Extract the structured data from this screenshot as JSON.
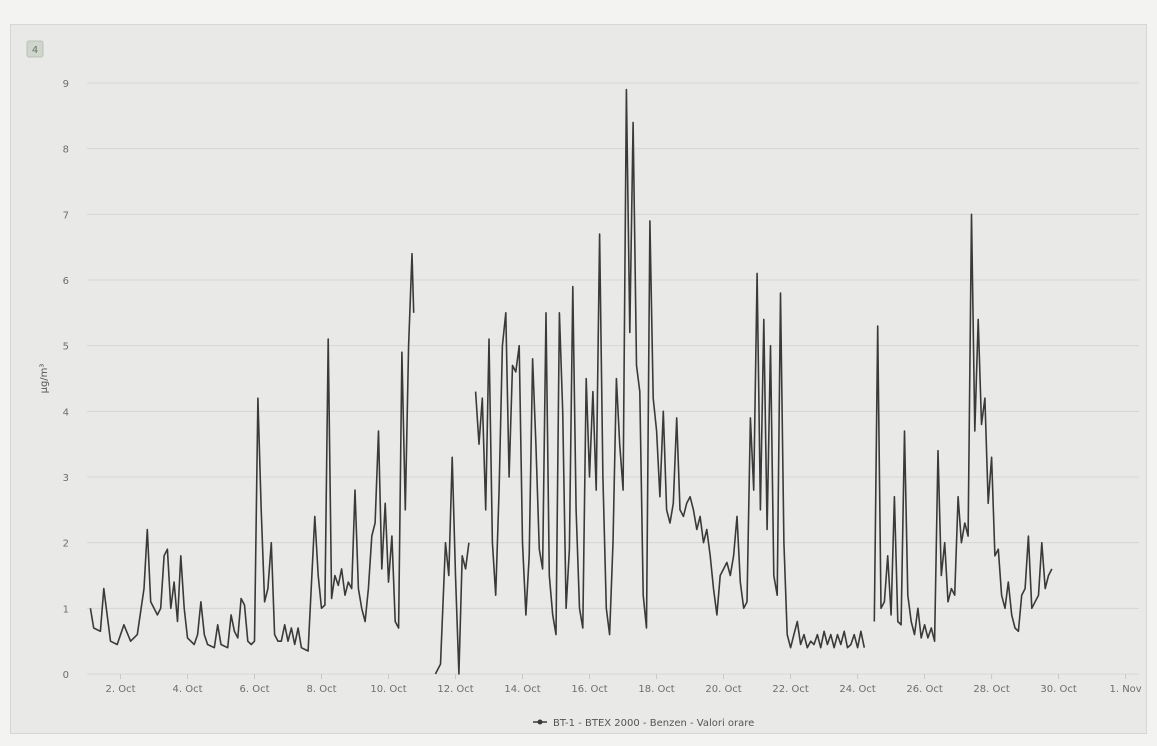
{
  "panel_badge": "4",
  "chart_data": {
    "type": "line",
    "ylabel": "µg/m³",
    "ylim": [
      0,
      9
    ],
    "yticks": [
      0,
      1,
      2,
      3,
      4,
      5,
      6,
      7,
      8,
      9
    ],
    "xlim_day": [
      1.0,
      32.4
    ],
    "xticks": [
      {
        "day": 2,
        "label": "2. Oct"
      },
      {
        "day": 4,
        "label": "4. Oct"
      },
      {
        "day": 6,
        "label": "6. Oct"
      },
      {
        "day": 8,
        "label": "8. Oct"
      },
      {
        "day": 10,
        "label": "10. Oct"
      },
      {
        "day": 12,
        "label": "12. Oct"
      },
      {
        "day": 14,
        "label": "14. Oct"
      },
      {
        "day": 16,
        "label": "16. Oct"
      },
      {
        "day": 18,
        "label": "18. Oct"
      },
      {
        "day": 20,
        "label": "20. Oct"
      },
      {
        "day": 22,
        "label": "22. Oct"
      },
      {
        "day": 24,
        "label": "24. Oct"
      },
      {
        "day": 26,
        "label": "26. Oct"
      },
      {
        "day": 28,
        "label": "28. Oct"
      },
      {
        "day": 30,
        "label": "30. Oct"
      },
      {
        "day": 32,
        "label": "1. Nov"
      }
    ],
    "grid": true,
    "legend_position": "bottom-center",
    "series": [
      {
        "name": "BT-1 - BTEX 2000 - Benzen - Valori orare",
        "color": "#3a3a3a",
        "segments": [
          [
            [
              1.1,
              1.0
            ],
            [
              1.2,
              0.7
            ],
            [
              1.4,
              0.65
            ],
            [
              1.5,
              1.3
            ],
            [
              1.7,
              0.5
            ],
            [
              1.9,
              0.45
            ],
            [
              2.1,
              0.75
            ],
            [
              2.3,
              0.5
            ],
            [
              2.5,
              0.6
            ],
            [
              2.7,
              1.3
            ],
            [
              2.8,
              2.2
            ],
            [
              2.9,
              1.1
            ],
            [
              3.1,
              0.9
            ],
            [
              3.2,
              1.0
            ],
            [
              3.3,
              1.8
            ],
            [
              3.4,
              1.9
            ],
            [
              3.5,
              1.0
            ],
            [
              3.6,
              1.4
            ],
            [
              3.7,
              0.8
            ],
            [
              3.8,
              1.8
            ],
            [
              3.9,
              1.0
            ],
            [
              4.0,
              0.55
            ],
            [
              4.2,
              0.45
            ],
            [
              4.3,
              0.6
            ],
            [
              4.4,
              1.1
            ],
            [
              4.5,
              0.6
            ],
            [
              4.6,
              0.45
            ],
            [
              4.8,
              0.4
            ],
            [
              4.9,
              0.75
            ],
            [
              5.0,
              0.45
            ],
            [
              5.2,
              0.4
            ],
            [
              5.3,
              0.9
            ],
            [
              5.4,
              0.65
            ],
            [
              5.5,
              0.55
            ],
            [
              5.6,
              1.15
            ],
            [
              5.7,
              1.05
            ],
            [
              5.8,
              0.5
            ],
            [
              5.9,
              0.45
            ],
            [
              6.0,
              0.5
            ],
            [
              6.1,
              4.2
            ],
            [
              6.2,
              2.5
            ],
            [
              6.3,
              1.1
            ],
            [
              6.4,
              1.3
            ],
            [
              6.5,
              2.0
            ],
            [
              6.6,
              0.6
            ],
            [
              6.7,
              0.5
            ],
            [
              6.8,
              0.5
            ],
            [
              6.9,
              0.75
            ],
            [
              7.0,
              0.5
            ],
            [
              7.1,
              0.7
            ],
            [
              7.2,
              0.45
            ],
            [
              7.3,
              0.7
            ],
            [
              7.4,
              0.4
            ],
            [
              7.6,
              0.35
            ],
            [
              7.8,
              2.4
            ],
            [
              7.9,
              1.5
            ],
            [
              8.0,
              1.0
            ],
            [
              8.1,
              1.05
            ],
            [
              8.2,
              5.1
            ],
            [
              8.3,
              1.15
            ],
            [
              8.4,
              1.5
            ],
            [
              8.5,
              1.35
            ],
            [
              8.6,
              1.6
            ],
            [
              8.7,
              1.2
            ],
            [
              8.8,
              1.4
            ],
            [
              8.9,
              1.3
            ],
            [
              9.0,
              2.8
            ],
            [
              9.1,
              1.3
            ],
            [
              9.2,
              1.0
            ],
            [
              9.3,
              0.8
            ],
            [
              9.4,
              1.3
            ],
            [
              9.5,
              2.1
            ],
            [
              9.6,
              2.3
            ],
            [
              9.7,
              3.7
            ],
            [
              9.8,
              1.6
            ],
            [
              9.9,
              2.6
            ],
            [
              10.0,
              1.4
            ],
            [
              10.1,
              2.1
            ],
            [
              10.2,
              0.8
            ],
            [
              10.3,
              0.7
            ],
            [
              10.4,
              4.9
            ],
            [
              10.5,
              2.5
            ],
            [
              10.6,
              5.0
            ],
            [
              10.7,
              6.4
            ],
            [
              10.75,
              5.5
            ]
          ],
          [
            [
              11.4,
              0.0
            ],
            [
              11.55,
              0.15
            ],
            [
              11.7,
              2.0
            ],
            [
              11.8,
              1.5
            ],
            [
              11.9,
              3.3
            ],
            [
              12.0,
              1.5
            ],
            [
              12.1,
              0.0
            ],
            [
              12.2,
              1.8
            ],
            [
              12.3,
              1.6
            ],
            [
              12.4,
              2.0
            ]
          ],
          [
            [
              12.6,
              4.3
            ],
            [
              12.7,
              3.5
            ],
            [
              12.8,
              4.2
            ],
            [
              12.9,
              2.5
            ],
            [
              13.0,
              5.1
            ],
            [
              13.1,
              2.0
            ],
            [
              13.2,
              1.2
            ],
            [
              13.3,
              2.8
            ],
            [
              13.4,
              5.0
            ],
            [
              13.5,
              5.5
            ],
            [
              13.6,
              3.0
            ],
            [
              13.7,
              4.7
            ],
            [
              13.8,
              4.6
            ],
            [
              13.9,
              5.0
            ],
            [
              14.0,
              2.0
            ],
            [
              14.1,
              0.9
            ],
            [
              14.2,
              1.8
            ],
            [
              14.3,
              4.8
            ],
            [
              14.4,
              3.5
            ],
            [
              14.5,
              1.9
            ],
            [
              14.6,
              1.6
            ],
            [
              14.7,
              5.5
            ],
            [
              14.8,
              1.5
            ],
            [
              14.9,
              0.9
            ],
            [
              15.0,
              0.6
            ],
            [
              15.1,
              5.5
            ],
            [
              15.2,
              4.0
            ],
            [
              15.3,
              1.0
            ],
            [
              15.4,
              1.9
            ],
            [
              15.5,
              5.9
            ],
            [
              15.6,
              2.5
            ],
            [
              15.7,
              1.0
            ],
            [
              15.8,
              0.7
            ],
            [
              15.9,
              4.5
            ],
            [
              16.0,
              3.0
            ],
            [
              16.1,
              4.3
            ],
            [
              16.2,
              2.8
            ],
            [
              16.3,
              6.7
            ],
            [
              16.4,
              3.0
            ],
            [
              16.5,
              1.0
            ],
            [
              16.6,
              0.6
            ],
            [
              16.7,
              2.0
            ],
            [
              16.8,
              4.5
            ],
            [
              16.9,
              3.5
            ],
            [
              17.0,
              2.8
            ],
            [
              17.1,
              8.9
            ],
            [
              17.2,
              5.2
            ],
            [
              17.3,
              8.4
            ],
            [
              17.4,
              4.7
            ],
            [
              17.5,
              4.3
            ],
            [
              17.6,
              1.2
            ],
            [
              17.7,
              0.7
            ],
            [
              17.8,
              6.9
            ],
            [
              17.9,
              4.2
            ],
            [
              18.0,
              3.7
            ],
            [
              18.1,
              2.7
            ],
            [
              18.2,
              4.0
            ],
            [
              18.3,
              2.5
            ],
            [
              18.4,
              2.3
            ],
            [
              18.5,
              2.6
            ],
            [
              18.6,
              3.9
            ],
            [
              18.7,
              2.5
            ],
            [
              18.8,
              2.4
            ],
            [
              18.9,
              2.6
            ],
            [
              19.0,
              2.7
            ],
            [
              19.1,
              2.5
            ],
            [
              19.2,
              2.2
            ],
            [
              19.3,
              2.4
            ],
            [
              19.4,
              2.0
            ],
            [
              19.5,
              2.2
            ],
            [
              19.6,
              1.8
            ],
            [
              19.7,
              1.3
            ],
            [
              19.8,
              0.9
            ],
            [
              19.9,
              1.5
            ],
            [
              20.0,
              1.6
            ],
            [
              20.1,
              1.7
            ],
            [
              20.2,
              1.5
            ],
            [
              20.3,
              1.8
            ],
            [
              20.4,
              2.4
            ],
            [
              20.5,
              1.4
            ],
            [
              20.6,
              1.0
            ],
            [
              20.7,
              1.1
            ],
            [
              20.8,
              3.9
            ],
            [
              20.9,
              2.8
            ],
            [
              21.0,
              6.1
            ],
            [
              21.1,
              2.5
            ],
            [
              21.2,
              5.4
            ],
            [
              21.3,
              2.2
            ],
            [
              21.4,
              5.0
            ],
            [
              21.5,
              1.5
            ],
            [
              21.6,
              1.2
            ],
            [
              21.7,
              5.8
            ],
            [
              21.8,
              2.0
            ],
            [
              21.9,
              0.6
            ],
            [
              22.0,
              0.4
            ],
            [
              22.1,
              0.6
            ],
            [
              22.2,
              0.8
            ],
            [
              22.3,
              0.45
            ],
            [
              22.4,
              0.6
            ],
            [
              22.5,
              0.4
            ],
            [
              22.6,
              0.5
            ],
            [
              22.7,
              0.45
            ],
            [
              22.8,
              0.6
            ],
            [
              22.9,
              0.4
            ],
            [
              23.0,
              0.65
            ],
            [
              23.1,
              0.45
            ],
            [
              23.2,
              0.6
            ],
            [
              23.3,
              0.4
            ],
            [
              23.4,
              0.6
            ],
            [
              23.5,
              0.45
            ],
            [
              23.6,
              0.65
            ],
            [
              23.7,
              0.4
            ],
            [
              23.8,
              0.45
            ],
            [
              23.9,
              0.6
            ],
            [
              24.0,
              0.4
            ],
            [
              24.1,
              0.65
            ],
            [
              24.2,
              0.4
            ]
          ],
          [
            [
              24.5,
              0.8
            ],
            [
              24.6,
              5.3
            ],
            [
              24.7,
              1.0
            ],
            [
              24.8,
              1.1
            ],
            [
              24.9,
              1.8
            ],
            [
              25.0,
              0.9
            ],
            [
              25.1,
              2.7
            ],
            [
              25.2,
              0.8
            ],
            [
              25.3,
              0.75
            ],
            [
              25.4,
              3.7
            ],
            [
              25.5,
              1.2
            ],
            [
              25.6,
              0.8
            ],
            [
              25.7,
              0.6
            ],
            [
              25.8,
              1.0
            ],
            [
              25.9,
              0.55
            ],
            [
              26.0,
              0.75
            ],
            [
              26.1,
              0.55
            ],
            [
              26.2,
              0.7
            ],
            [
              26.3,
              0.5
            ],
            [
              26.4,
              3.4
            ],
            [
              26.5,
              1.5
            ],
            [
              26.6,
              2.0
            ],
            [
              26.7,
              1.1
            ],
            [
              26.8,
              1.3
            ],
            [
              26.9,
              1.2
            ],
            [
              27.0,
              2.7
            ],
            [
              27.1,
              2.0
            ],
            [
              27.2,
              2.3
            ],
            [
              27.3,
              2.1
            ],
            [
              27.4,
              7.0
            ],
            [
              27.5,
              3.7
            ],
            [
              27.6,
              5.4
            ],
            [
              27.7,
              3.8
            ],
            [
              27.8,
              4.2
            ],
            [
              27.9,
              2.6
            ],
            [
              28.0,
              3.3
            ],
            [
              28.1,
              1.8
            ],
            [
              28.2,
              1.9
            ],
            [
              28.3,
              1.2
            ],
            [
              28.4,
              1.0
            ],
            [
              28.5,
              1.4
            ],
            [
              28.6,
              0.9
            ],
            [
              28.7,
              0.7
            ],
            [
              28.8,
              0.65
            ],
            [
              28.9,
              1.2
            ],
            [
              29.0,
              1.3
            ],
            [
              29.1,
              2.1
            ],
            [
              29.2,
              1.0
            ],
            [
              29.3,
              1.1
            ],
            [
              29.4,
              1.2
            ],
            [
              29.5,
              2.0
            ],
            [
              29.6,
              1.3
            ],
            [
              29.7,
              1.5
            ],
            [
              29.8,
              1.6
            ]
          ]
        ]
      }
    ]
  }
}
